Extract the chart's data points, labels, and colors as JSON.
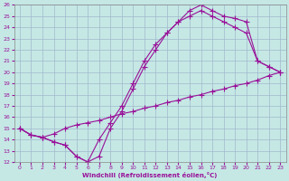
{
  "xlabel": "Windchill (Refroidissement éolien,°C)",
  "bg_color": "#c5e8e5",
  "line_color": "#991199",
  "grid_color": "#a0b8cc",
  "xlim": [
    -0.5,
    23.5
  ],
  "ylim": [
    12,
    26
  ],
  "xticks": [
    0,
    1,
    2,
    3,
    4,
    5,
    6,
    7,
    8,
    9,
    10,
    11,
    12,
    13,
    14,
    15,
    16,
    17,
    18,
    19,
    20,
    21,
    22,
    23
  ],
  "yticks": [
    12,
    13,
    14,
    15,
    16,
    17,
    18,
    19,
    20,
    21,
    22,
    23,
    24,
    25,
    26
  ],
  "line1_x": [
    0,
    1,
    2,
    3,
    4,
    5,
    6,
    7,
    8,
    9,
    10,
    11,
    12,
    13,
    14,
    15,
    16,
    17,
    18,
    19,
    20,
    21,
    22,
    23
  ],
  "line1_y": [
    15.0,
    14.4,
    14.2,
    14.5,
    15.0,
    15.3,
    15.5,
    15.7,
    16.0,
    16.3,
    16.5,
    16.8,
    17.0,
    17.3,
    17.5,
    17.8,
    18.0,
    18.3,
    18.5,
    18.8,
    19.0,
    19.3,
    19.7,
    20.0
  ],
  "line2_x": [
    0,
    1,
    2,
    3,
    4,
    5,
    6,
    7,
    8,
    9,
    10,
    11,
    12,
    13,
    14,
    15,
    16,
    17,
    18,
    19,
    20,
    21,
    22,
    23
  ],
  "line2_y": [
    15.0,
    14.4,
    14.2,
    13.8,
    13.5,
    12.5,
    12.0,
    12.5,
    15.0,
    16.5,
    18.5,
    20.5,
    22.0,
    23.5,
    24.5,
    25.5,
    26.0,
    25.5,
    25.0,
    24.8,
    24.5,
    21.0,
    20.5,
    20.0
  ],
  "line3_x": [
    0,
    1,
    2,
    3,
    4,
    5,
    6,
    7,
    8,
    9,
    10,
    11,
    12,
    13,
    14,
    15,
    16,
    17,
    18,
    19,
    20,
    21,
    22,
    23
  ],
  "line3_y": [
    15.0,
    14.4,
    14.2,
    13.8,
    13.5,
    12.5,
    12.0,
    14.0,
    15.5,
    17.0,
    19.0,
    21.0,
    22.5,
    23.5,
    24.5,
    25.0,
    25.5,
    25.0,
    24.5,
    24.0,
    23.5,
    21.0,
    20.5,
    20.0
  ]
}
